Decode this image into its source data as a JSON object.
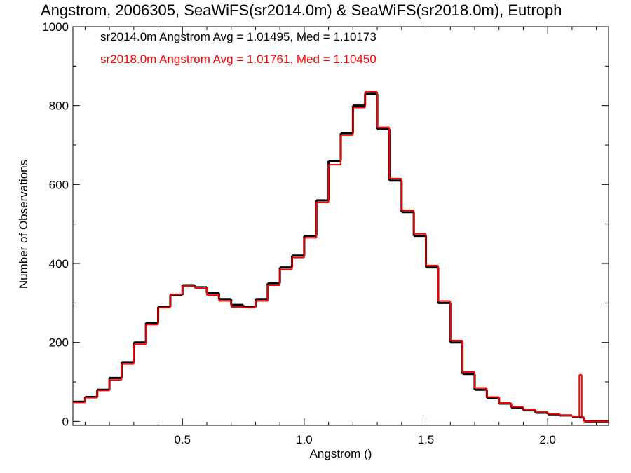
{
  "chart_data": {
    "type": "histogram",
    "title": "Angstrom, 2006305, SeaWiFS(sr2014.0m) & SeaWiFS(sr2018.0m), Eutroph",
    "xlabel": "Angstrom ()",
    "ylabel": "Number of Observations",
    "xlim": [
      0.05,
      2.25
    ],
    "ylim": [
      -10,
      1000
    ],
    "x_ticks": [
      "0.5",
      "1.0",
      "1.5",
      "2.0"
    ],
    "y_ticks": [
      "0",
      "200",
      "400",
      "600",
      "800",
      "1000"
    ],
    "legend": [
      "sr2014.0m Angstrom Avg = 1.01495, Med = 1.10173",
      "sr2018.0m Angstrom Avg = 1.01761, Med = 1.10450"
    ],
    "series": [
      {
        "name": "sr2014.0m",
        "color": "#000000",
        "x": [
          0.05,
          0.1,
          0.15,
          0.2,
          0.25,
          0.3,
          0.35,
          0.4,
          0.45,
          0.5,
          0.55,
          0.6,
          0.65,
          0.7,
          0.75,
          0.8,
          0.85,
          0.9,
          0.95,
          1.0,
          1.05,
          1.1,
          1.15,
          1.2,
          1.25,
          1.3,
          1.35,
          1.4,
          1.45,
          1.5,
          1.55,
          1.6,
          1.65,
          1.7,
          1.75,
          1.8,
          1.85,
          1.9,
          1.95,
          2.0,
          2.05,
          2.1,
          2.13,
          2.14,
          2.15,
          2.2,
          2.25
        ],
        "values": [
          50,
          62,
          80,
          110,
          150,
          200,
          250,
          290,
          320,
          345,
          340,
          325,
          310,
          295,
          290,
          310,
          350,
          390,
          420,
          470,
          560,
          660,
          730,
          800,
          830,
          740,
          610,
          530,
          470,
          390,
          300,
          200,
          120,
          80,
          60,
          45,
          35,
          28,
          22,
          18,
          15,
          12,
          10,
          10,
          0,
          0,
          0
        ]
      },
      {
        "name": "sr2018.0m",
        "color": "#ff0000",
        "x": [
          0.05,
          0.1,
          0.15,
          0.2,
          0.25,
          0.3,
          0.35,
          0.4,
          0.45,
          0.5,
          0.55,
          0.6,
          0.65,
          0.7,
          0.75,
          0.8,
          0.85,
          0.9,
          0.95,
          1.0,
          1.05,
          1.1,
          1.15,
          1.2,
          1.25,
          1.3,
          1.35,
          1.4,
          1.45,
          1.5,
          1.55,
          1.6,
          1.65,
          1.7,
          1.75,
          1.8,
          1.85,
          1.9,
          1.95,
          2.0,
          2.05,
          2.1,
          2.13,
          2.14,
          2.15,
          2.2,
          2.25
        ],
        "values": [
          48,
          60,
          78,
          105,
          145,
          195,
          245,
          288,
          322,
          343,
          338,
          320,
          305,
          290,
          288,
          305,
          345,
          385,
          415,
          465,
          555,
          650,
          725,
          795,
          835,
          745,
          615,
          535,
          475,
          395,
          305,
          205,
          125,
          85,
          62,
          47,
          37,
          30,
          24,
          19,
          16,
          12,
          118,
          10,
          0,
          0,
          0
        ]
      }
    ]
  }
}
